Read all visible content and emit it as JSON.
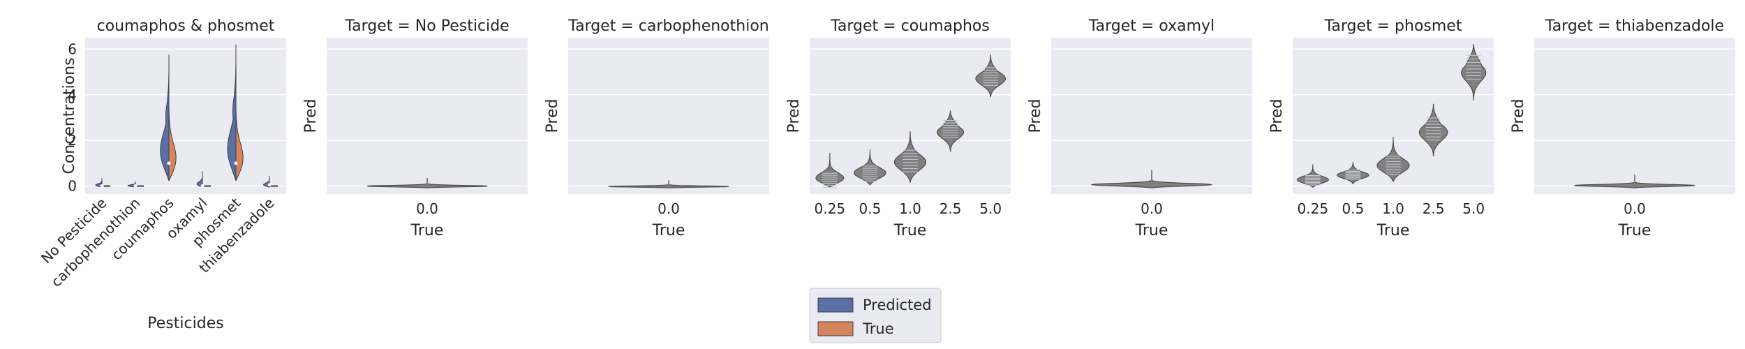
{
  "chart_data": [
    {
      "type": "violin",
      "title": "coumaphos & phosmet",
      "xlabel": "Pesticides",
      "ylabel": "Concentrations",
      "ylim": [
        -0.35,
        6.5
      ],
      "yticks": [
        0,
        2,
        4,
        6
      ],
      "categories": [
        "No Pesticide",
        "carbophenothion",
        "coumaphos",
        "oxamyl",
        "phosmet",
        "thiabenzadole"
      ],
      "split": true,
      "series": [
        {
          "name": "Predicted",
          "color": "#5a6fa3",
          "max": [
            0.35,
            0.2,
            5.75,
            0.65,
            6.2,
            0.45
          ],
          "median": [
            0.0,
            0.0,
            1.0,
            0.0,
            1.0,
            0.05
          ]
        },
        {
          "name": "True",
          "color": "#d6845b",
          "max": [
            0.0,
            0.0,
            5.0,
            0.0,
            5.0,
            0.0
          ],
          "median": [
            0.0,
            0.0,
            1.0,
            0.0,
            1.0,
            0.0
          ]
        }
      ],
      "legend": "bottom-center"
    },
    {
      "type": "violin",
      "title": "Target = No Pesticide",
      "xlabel": "True",
      "ylabel": "Pred",
      "categories": [
        "0.0"
      ],
      "ylim": [
        -0.35,
        6.5
      ],
      "max": [
        0.35
      ]
    },
    {
      "type": "violin",
      "title": "Target = carbophenothion",
      "xlabel": "True",
      "ylabel": "Pred",
      "categories": [
        "0.0"
      ],
      "ylim": [
        -0.35,
        6.5
      ],
      "max": [
        0.25
      ]
    },
    {
      "type": "violin",
      "title": "Target = coumaphos",
      "xlabel": "True",
      "ylabel": "Pred",
      "categories": [
        "0.25",
        "0.5",
        "1.0",
        "2.5",
        "5.0"
      ],
      "ylim": [
        -0.35,
        6.5
      ],
      "min": [
        -0.05,
        0.05,
        0.15,
        1.5,
        3.9
      ],
      "median": [
        0.25,
        0.55,
        1.1,
        2.5,
        4.8
      ],
      "max": [
        1.45,
        1.6,
        2.4,
        3.3,
        5.75
      ]
    },
    {
      "type": "violin",
      "title": "Target = oxamyl",
      "xlabel": "True",
      "ylabel": "Pred",
      "categories": [
        "0.0"
      ],
      "ylim": [
        -0.35,
        6.5
      ],
      "max": [
        0.7
      ]
    },
    {
      "type": "violin",
      "title": "Target = phosmet",
      "xlabel": "True",
      "ylabel": "Pred",
      "categories": [
        "0.25",
        "0.5",
        "1.0",
        "2.5",
        "5.0"
      ],
      "ylim": [
        -0.35,
        6.5
      ],
      "min": [
        -0.05,
        0.1,
        0.2,
        1.3,
        3.75
      ],
      "median": [
        0.25,
        0.5,
        0.9,
        2.5,
        5.2
      ],
      "max": [
        0.95,
        1.05,
        2.15,
        3.6,
        6.2
      ]
    },
    {
      "type": "violin",
      "title": "Target = thiabenzadole",
      "xlabel": "True",
      "ylabel": "Pred",
      "categories": [
        "0.0"
      ],
      "ylim": [
        -0.35,
        6.5
      ],
      "max": [
        0.5
      ]
    }
  ]
}
